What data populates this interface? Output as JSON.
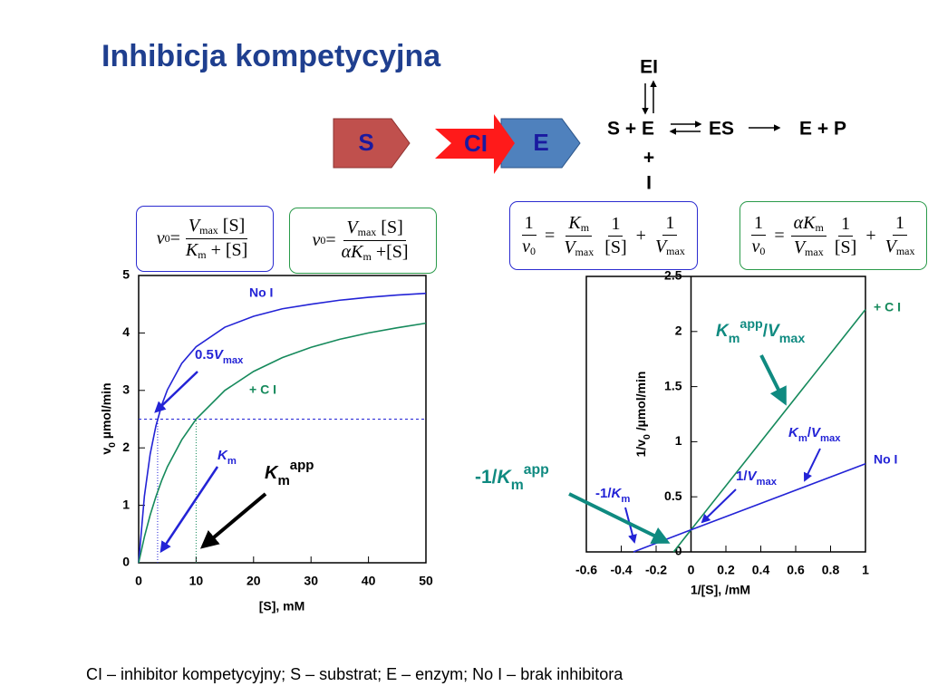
{
  "title": "Inhibicja kompetycyjna",
  "diagram": {
    "arrows": [
      "S",
      "CI",
      "E"
    ],
    "reaction": {
      "ei": "EI",
      "se": "S + E",
      "es": "ES",
      "ep": "E + P",
      "plus": "+",
      "i": "I"
    }
  },
  "formulas": [
    {
      "lhs": {
        "v": "v",
        "sub": "0"
      },
      "eq": "=",
      "num": {
        "v": "V",
        "sub": "max",
        "rest": "[S]"
      },
      "den": {
        "v": "K",
        "sub": "m",
        "rest": "+ [S]"
      }
    },
    {
      "lhs": {
        "v": "v",
        "sub": "0"
      },
      "eq": "=",
      "num": {
        "v": "V",
        "sub": "max",
        "rest": "[S]"
      },
      "den": {
        "pre": "α",
        "v": "K",
        "sub": "m",
        "rest": "+[S]"
      }
    },
    {
      "lhs": {
        "num": "1",
        "den": {
          "v": "v",
          "sub": "0"
        }
      },
      "eq": "=",
      "t1": {
        "num": {
          "v": "K",
          "sub": "m"
        },
        "den": {
          "v": "V",
          "sub": "max"
        }
      },
      "t2": {
        "num": "1",
        "den": "[S]"
      },
      "plus": "+",
      "t3": {
        "num": "1",
        "den": {
          "v": "V",
          "sub": "max"
        }
      }
    },
    {
      "lhs": {
        "num": "1",
        "den": {
          "v": "v",
          "sub": "0"
        }
      },
      "eq": "=",
      "t1": {
        "num": {
          "pre": "α",
          "v": "K",
          "sub": "m"
        },
        "den": {
          "v": "V",
          "sub": "max"
        }
      },
      "t2": {
        "num": "1",
        "den": "[S]"
      },
      "plus": "+",
      "t3": {
        "num": "1",
        "den": {
          "v": "V",
          "sub": "max"
        }
      }
    }
  ],
  "chart_data": [
    {
      "type": "line",
      "x_label": "[S], mM",
      "y_label": [
        {
          "t": "v"
        },
        {
          "t": "0",
          "f": "sub"
        },
        {
          "t": " µmol/min"
        }
      ],
      "x": [
        0,
        1,
        2,
        3,
        4,
        5,
        7.5,
        10,
        15,
        20,
        25,
        30,
        35,
        40,
        45,
        50
      ],
      "series": [
        {
          "name": "No I",
          "color": "#2323d6",
          "values": [
            0,
            1.16,
            1.89,
            2.38,
            2.74,
            3.01,
            3.47,
            3.76,
            4.1,
            4.29,
            4.42,
            4.5,
            4.57,
            4.62,
            4.66,
            4.69
          ]
        },
        {
          "name": "+ C I",
          "color": "#168a5c",
          "values": [
            0,
            0.45,
            0.83,
            1.15,
            1.43,
            1.67,
            2.14,
            2.5,
            3.0,
            3.33,
            3.57,
            3.75,
            3.89,
            4.0,
            4.09,
            4.17
          ]
        }
      ],
      "hlines": [
        2.5
      ],
      "vlines": [
        3.3,
        10
      ],
      "xlim": [
        0,
        50
      ],
      "ylim": [
        0,
        5
      ],
      "xticks": [
        0,
        10,
        20,
        30,
        40,
        50
      ],
      "yticks": [
        0,
        1,
        2,
        3,
        4,
        5
      ],
      "annotations": [
        {
          "color": "#2323d6",
          "parts": [
            {
              "t": "0.5"
            },
            {
              "t": "V",
              "f": "i"
            },
            {
              "t": "max",
              "f": "sub"
            }
          ]
        },
        {
          "color": "#2323d6",
          "parts": [
            {
              "t": "K",
              "f": "i"
            },
            {
              "t": "m",
              "f": "sub"
            }
          ]
        },
        {
          "color": "#000000",
          "parts": [
            {
              "t": "K",
              "f": "i"
            },
            {
              "t": "m",
              "f": "sub"
            },
            {
              "t": "app",
              "f": "sup"
            }
          ]
        }
      ]
    },
    {
      "type": "line",
      "x_label": "1/[S], /mM",
      "y_label": [
        {
          "t": "1/v"
        },
        {
          "t": "0",
          "f": "sub"
        },
        {
          "t": " /µmol/min"
        }
      ],
      "series": [
        {
          "name": "+ C I",
          "color": "#168a5c",
          "x": [
            -0.1,
            0,
            1
          ],
          "values": [
            0,
            0.2,
            2.2
          ]
        },
        {
          "name": "No I",
          "color": "#2323d6",
          "x": [
            -0.33,
            0,
            1
          ],
          "values": [
            0,
            0.2,
            0.8
          ]
        }
      ],
      "xlim": [
        -0.6,
        1
      ],
      "ylim": [
        0,
        2.5
      ],
      "xticks": [
        -0.6,
        -0.4,
        -0.2,
        0,
        0.2,
        0.4,
        0.6,
        0.8,
        1
      ],
      "yticks": [
        0,
        0.5,
        1,
        1.5,
        2,
        2.5
      ],
      "annotations": [
        {
          "color": "#0f8a80",
          "parts": [
            {
              "t": "K",
              "f": "i"
            },
            {
              "t": "m",
              "f": "sub"
            },
            {
              "t": "app",
              "f": "sup"
            },
            {
              "t": "/"
            },
            {
              "t": "V",
              "f": "i"
            },
            {
              "t": "max",
              "f": "sub"
            }
          ]
        },
        {
          "color": "#2323d6",
          "parts": [
            {
              "t": "K",
              "f": "i"
            },
            {
              "t": "m",
              "f": "sub"
            },
            {
              "t": "/"
            },
            {
              "t": "V",
              "f": "i"
            },
            {
              "t": "max",
              "f": "sub"
            }
          ]
        },
        {
          "color": "#2323d6",
          "parts": [
            {
              "t": "1/"
            },
            {
              "t": "V",
              "f": "i"
            },
            {
              "t": "max",
              "f": "sub"
            }
          ]
        },
        {
          "color": "#2323d6",
          "parts": [
            {
              "t": "-1/"
            },
            {
              "t": "K",
              "f": "i"
            },
            {
              "t": "m",
              "f": "sub"
            }
          ]
        },
        {
          "color": "#0f8a80",
          "parts": [
            {
              "t": "-1/"
            },
            {
              "t": "K",
              "f": "i"
            },
            {
              "t": "m",
              "f": "sub"
            },
            {
              "t": "app",
              "f": "sup"
            }
          ]
        }
      ]
    }
  ],
  "caption": "CI – inhibitor kompetycyjny; S – substrat; E – enzym; No I – brak inhibitora"
}
